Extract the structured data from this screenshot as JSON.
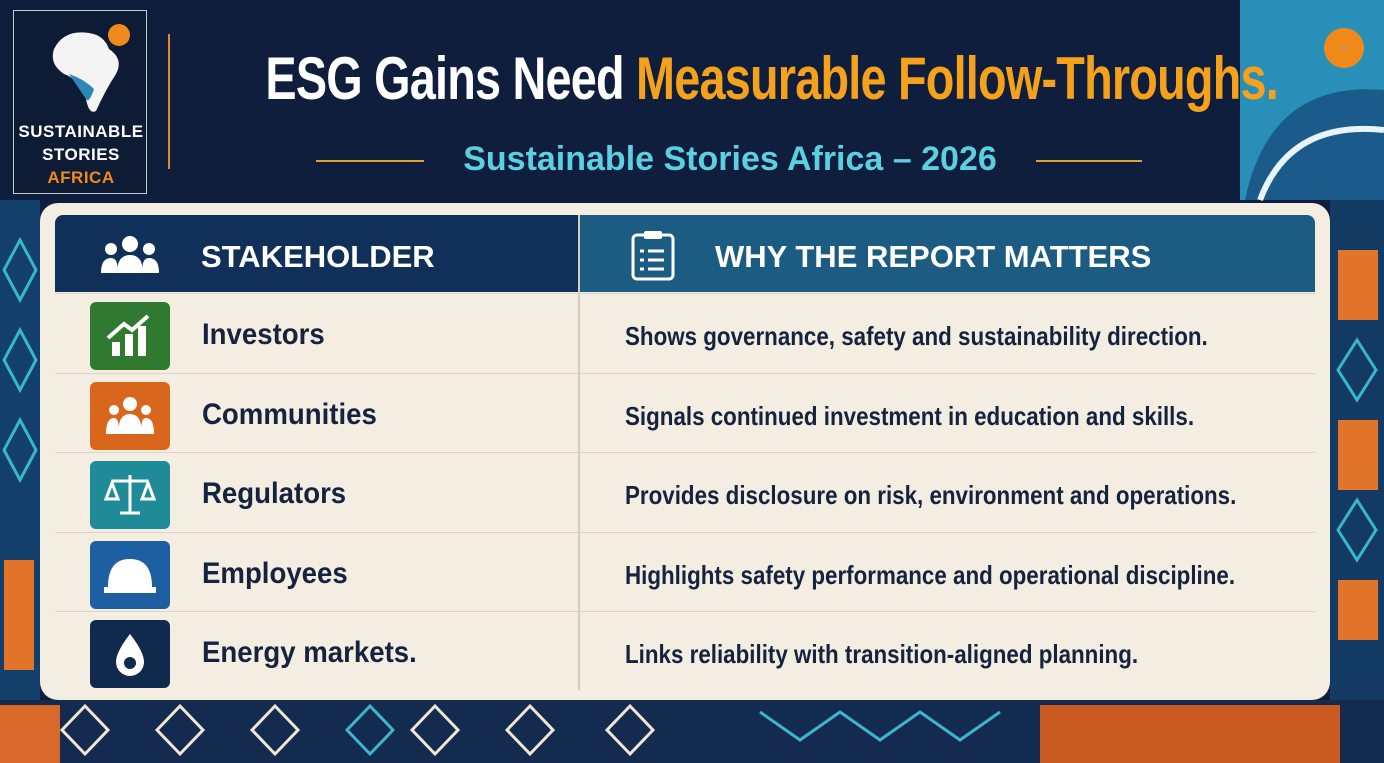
{
  "logo": {
    "lines": [
      "SUSTAINABLE",
      "STORIES",
      "AFRICA"
    ]
  },
  "header": {
    "title_part1": "ESG Gains Need",
    "title_part2": "Measurable Follow-Throughs.",
    "subtitle": "Sustainable Stories Africa – 2026"
  },
  "table": {
    "columns": [
      "STAKEHOLDER",
      "WHY THE REPORT MATTERS"
    ],
    "rows": [
      [
        "Investors",
        "Shows governance, safety and sustainability direction."
      ],
      [
        "Communities",
        "Signals continued investment in education and skills."
      ],
      [
        "Regulators",
        "Provides disclosure on risk, environment and operations."
      ],
      [
        "Employees",
        "Highlights safety performance and operational discipline."
      ],
      [
        "Energy markets.",
        "Links reliability with transition-aligned planning."
      ]
    ]
  }
}
